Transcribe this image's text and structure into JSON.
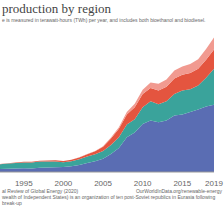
{
  "chart_data": {
    "type": "area",
    "stacked": true,
    "title": "production by region",
    "subtitle": "e is measured in terawatt-hours (TWh) per year, and includes both bioethanol and biodiesel.",
    "source": "al Review of Global Energy (2020)",
    "source_url": "OurWorldInData.org/renewable-energy",
    "note": "wealth of Independent States) is an organization of ten post-Soviet republics in Eurasia following break-up",
    "x": [
      1992,
      1993,
      1994,
      1995,
      1996,
      1997,
      1998,
      1999,
      2000,
      2001,
      2002,
      2003,
      2004,
      2005,
      2006,
      2007,
      2008,
      2009,
      2010,
      2011,
      2012,
      2013,
      2014,
      2015,
      2016,
      2017,
      2018,
      2019
    ],
    "xlim": [
      1992,
      2019
    ],
    "xticks": [
      1995,
      2000,
      2005,
      2010,
      2015,
      2019
    ],
    "ylim": [
      0,
      1200
    ],
    "tick_labels": "x",
    "grid": false,
    "series": [
      {
        "color": "#5a6db3",
        "values": [
          25,
          28,
          30,
          32,
          30,
          35,
          38,
          40,
          42,
          48,
          58,
          75,
          90,
          110,
          150,
          200,
          290,
          330,
          400,
          430,
          415,
          430,
          470,
          480,
          500,
          520,
          545,
          560
        ]
      },
      {
        "color": "#3aa39b",
        "values": [
          40,
          42,
          45,
          48,
          50,
          52,
          50,
          48,
          40,
          42,
          48,
          55,
          58,
          65,
          75,
          90,
          105,
          110,
          140,
          160,
          150,
          160,
          180,
          200,
          190,
          200,
          240,
          300
        ]
      },
      {
        "color": "#e4553f",
        "values": [
          2,
          3,
          4,
          5,
          6,
          7,
          8,
          9,
          10,
          12,
          15,
          18,
          25,
          35,
          55,
          70,
          85,
          100,
          110,
          110,
          115,
          120,
          130,
          130,
          135,
          140,
          150,
          160
        ]
      },
      {
        "color": "#f19a90",
        "values": [
          0,
          0,
          0,
          0,
          0,
          0,
          0,
          0,
          0,
          1,
          1,
          2,
          3,
          5,
          8,
          12,
          20,
          28,
          35,
          45,
          55,
          60,
          65,
          70,
          75,
          80,
          90,
          100
        ]
      }
    ]
  }
}
